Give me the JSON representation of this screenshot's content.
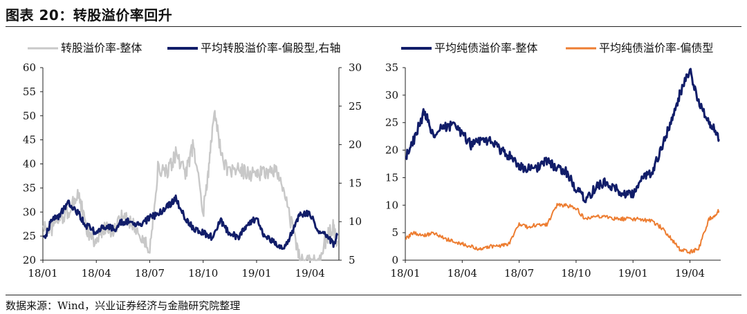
{
  "page": {
    "title": "图表 20：转股溢价率回升",
    "source": "数据来源：Wind，兴业证券经济与金融研究院整理"
  },
  "chart_data": [
    {
      "type": "line",
      "title": "",
      "x_ticks": [
        "18/01",
        "18/04",
        "18/07",
        "18/10",
        "19/01",
        "19/04"
      ],
      "ylim": [
        20,
        60
      ],
      "y_ticks": [
        20,
        25,
        30,
        35,
        40,
        45,
        50,
        55,
        60
      ],
      "y2lim": [
        5,
        30
      ],
      "y2_ticks": [
        5,
        10,
        15,
        20,
        25,
        30
      ],
      "legend_position": "top",
      "grid": false,
      "series": [
        {
          "name": "转股溢价率-整体",
          "axis": "left",
          "color": "#c8c8c8",
          "x": [
            "18/01/02",
            "18/01/15",
            "18/02/01",
            "18/02/15",
            "18/03/01",
            "18/03/15",
            "18/04/01",
            "18/04/15",
            "18/05/01",
            "18/05/15",
            "18/06/01",
            "18/06/15",
            "18/07/01",
            "18/07/15",
            "18/08/01",
            "18/08/15",
            "18/09/01",
            "18/09/15",
            "18/10/01",
            "18/10/10",
            "18/10/20",
            "18/11/01",
            "18/11/15",
            "18/12/01",
            "18/12/15",
            "19/01/01",
            "19/01/15",
            "19/02/01",
            "19/02/15",
            "19/03/01",
            "19/03/15",
            "19/04/01",
            "19/04/15",
            "19/05/01",
            "19/05/10",
            "19/05/17"
          ],
          "values": [
            27,
            26.5,
            29,
            30,
            34,
            26,
            23.5,
            27,
            26,
            29,
            28,
            25,
            22,
            39,
            38,
            42,
            38,
            44,
            30,
            38,
            52,
            42,
            38,
            39,
            38,
            38,
            38,
            39,
            35,
            27,
            20,
            19.5,
            20,
            25,
            27,
            24
          ]
        },
        {
          "name": "平均转股溢价率-偏股型,右轴",
          "axis": "right",
          "color": "#111d69",
          "x": [
            "18/01/02",
            "18/01/15",
            "18/02/01",
            "18/02/15",
            "18/03/01",
            "18/03/15",
            "18/04/01",
            "18/04/15",
            "18/05/01",
            "18/05/15",
            "18/06/01",
            "18/06/15",
            "18/07/01",
            "18/07/15",
            "18/08/01",
            "18/08/15",
            "18/09/01",
            "18/09/15",
            "18/10/01",
            "18/10/15",
            "18/11/01",
            "18/11/15",
            "18/12/01",
            "18/12/15",
            "19/01/01",
            "19/01/15",
            "19/02/01",
            "19/02/15",
            "19/03/01",
            "19/03/15",
            "19/04/01",
            "19/04/15",
            "19/05/01",
            "19/05/10",
            "19/05/17"
          ],
          "values": [
            7.5,
            10,
            11,
            12.5,
            11,
            9.5,
            8.5,
            9.5,
            9,
            10,
            10,
            9.5,
            10.5,
            11,
            12,
            13,
            10.5,
            9,
            8.5,
            8,
            10,
            8.5,
            8,
            9.5,
            10.5,
            8,
            7.5,
            6.5,
            8.5,
            11,
            11,
            9,
            8,
            7,
            8.2
          ]
        }
      ]
    },
    {
      "type": "line",
      "title": "",
      "x_ticks": [
        "18/01",
        "18/04",
        "18/07",
        "18/10",
        "19/01",
        "19/04"
      ],
      "ylim": [
        0,
        35
      ],
      "y_ticks": [
        0,
        5,
        10,
        15,
        20,
        25,
        30,
        35
      ],
      "legend_position": "top",
      "grid": false,
      "series": [
        {
          "name": "平均纯债溢价率-整体",
          "color": "#111d69",
          "x": [
            "18/01/02",
            "18/01/15",
            "18/02/01",
            "18/02/15",
            "18/03/01",
            "18/03/15",
            "18/04/01",
            "18/04/15",
            "18/05/01",
            "18/05/15",
            "18/06/01",
            "18/06/15",
            "18/07/01",
            "18/07/15",
            "18/08/01",
            "18/08/15",
            "18/09/01",
            "18/09/15",
            "18/10/01",
            "18/10/15",
            "18/11/01",
            "18/11/15",
            "18/12/01",
            "18/12/15",
            "19/01/01",
            "19/01/15",
            "19/02/01",
            "19/02/15",
            "19/03/01",
            "19/03/15",
            "19/04/01",
            "19/04/15",
            "19/05/01",
            "19/05/10",
            "19/05/17"
          ],
          "values": [
            19,
            22,
            27,
            23,
            24,
            24.5,
            23,
            21,
            22,
            21.5,
            20,
            19,
            17,
            16.5,
            17,
            18,
            16.5,
            16,
            13,
            11,
            13,
            14,
            13.5,
            12,
            12,
            14.5,
            16,
            20,
            25,
            30,
            34.5,
            29,
            25,
            24,
            22
          ]
        },
        {
          "name": "平均纯债溢价率-偏债型",
          "color": "#ed7d31",
          "x": [
            "18/01/02",
            "18/01/15",
            "18/02/01",
            "18/02/15",
            "18/03/01",
            "18/03/15",
            "18/04/01",
            "18/04/15",
            "18/05/01",
            "18/05/15",
            "18/06/01",
            "18/06/15",
            "18/07/01",
            "18/07/15",
            "18/08/01",
            "18/08/15",
            "18/09/01",
            "18/09/15",
            "18/10/01",
            "18/10/15",
            "18/11/01",
            "18/11/15",
            "18/12/01",
            "18/12/15",
            "19/01/01",
            "19/01/15",
            "19/02/01",
            "19/02/15",
            "19/03/01",
            "19/03/15",
            "19/04/01",
            "19/04/15",
            "19/05/01",
            "19/05/10",
            "19/05/17"
          ],
          "values": [
            4,
            5,
            4.5,
            5,
            4,
            3.5,
            3,
            2.5,
            2,
            2.5,
            2.5,
            3,
            6.5,
            6,
            6.5,
            6.5,
            10,
            10,
            9.5,
            7.5,
            8,
            8,
            7.5,
            7.5,
            7.5,
            7.5,
            7,
            6,
            4,
            2,
            1.5,
            2,
            7.5,
            8,
            9
          ]
        }
      ]
    }
  ]
}
